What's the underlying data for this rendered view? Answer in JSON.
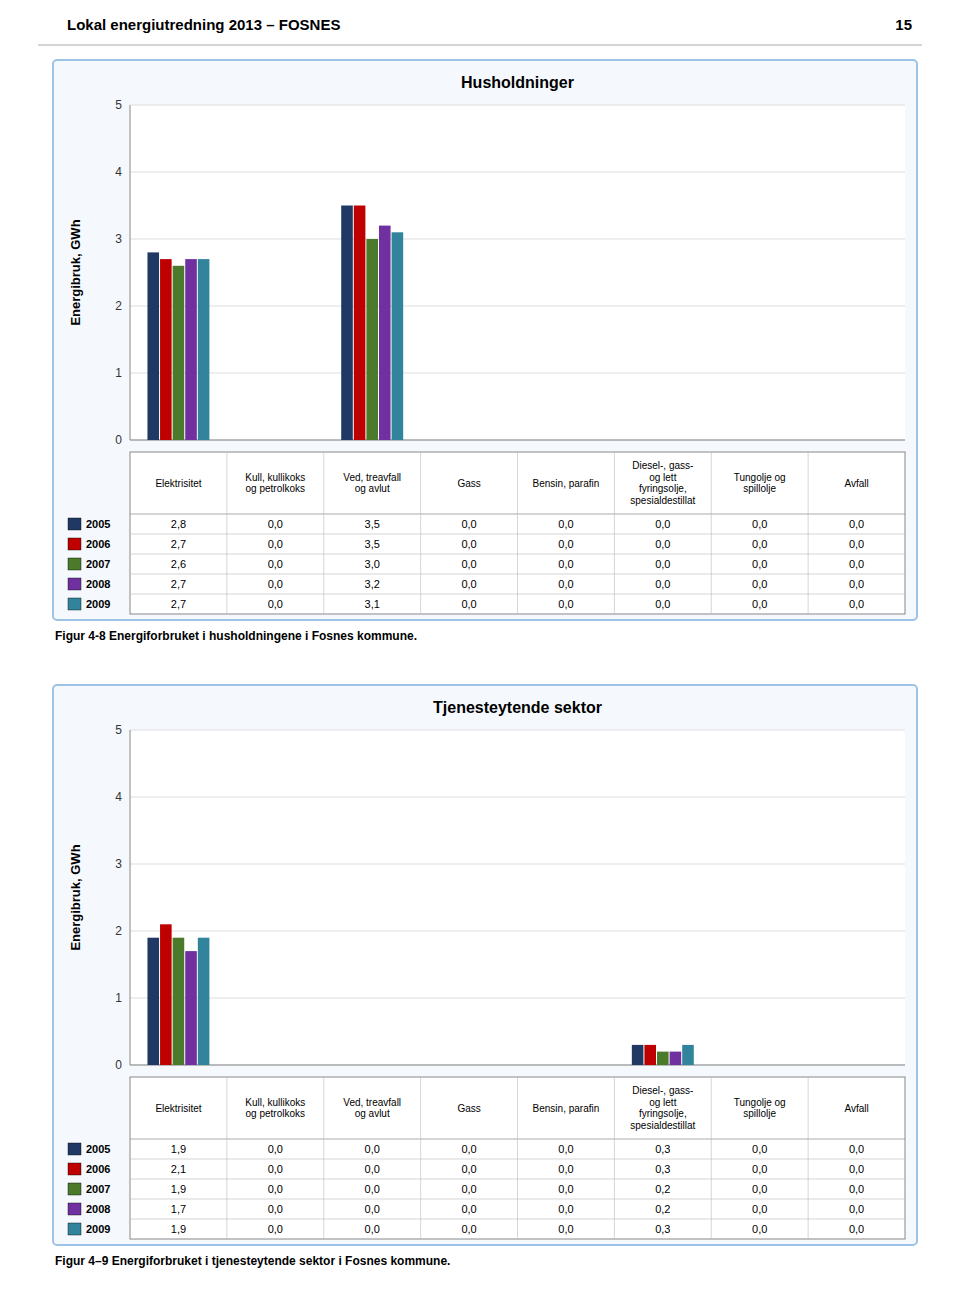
{
  "header": "Lokal energiutredning 2013 – FOSNES",
  "page_number": "15",
  "chart_data": [
    {
      "type": "bar",
      "title": "Husholdninger",
      "ylabel": "Energibruk, GWh",
      "annotations": [
        "Figur 4-8 Energiforbruket i husholdningene i Fosnes kommune."
      ],
      "categories": [
        "Elektrisitet",
        "Kull, kullikoks\nog petrolkoks",
        "Ved, treavfall\nog avlut",
        "Gass",
        "Bensin, parafin",
        "Diesel-, gass-\nog lett\nfyringsolje,\nspesialdestillat",
        "Tungolje og\nspillolje",
        "Avfall"
      ],
      "series": [
        {
          "name": "2005",
          "color": "#1F3864",
          "values": [
            2.8,
            0.0,
            3.5,
            0.0,
            0.0,
            0.0,
            0.0,
            0.0
          ],
          "value_labels": [
            "2,8",
            "0,0",
            "3,5",
            "0,0",
            "0,0",
            "0,0",
            "0,0",
            "0,0"
          ]
        },
        {
          "name": "2006",
          "color": "#BE0000",
          "values": [
            2.7,
            0.0,
            3.5,
            0.0,
            0.0,
            0.0,
            0.0,
            0.0
          ],
          "value_labels": [
            "2,7",
            "0,0",
            "3,5",
            "0,0",
            "0,0",
            "0,0",
            "0,0",
            "0,0"
          ]
        },
        {
          "name": "2007",
          "color": "#4A7A2A",
          "values": [
            2.6,
            0.0,
            3.0,
            0.0,
            0.0,
            0.0,
            0.0,
            0.0
          ],
          "value_labels": [
            "2,6",
            "0,0",
            "3,0",
            "0,0",
            "0,0",
            "0,0",
            "0,0",
            "0,0"
          ]
        },
        {
          "name": "2008",
          "color": "#7030A0",
          "values": [
            2.7,
            0.0,
            3.2,
            0.0,
            0.0,
            0.0,
            0.0,
            0.0
          ],
          "value_labels": [
            "2,7",
            "0,0",
            "3,2",
            "0,0",
            "0,0",
            "0,0",
            "0,0",
            "0,0"
          ]
        },
        {
          "name": "2009",
          "color": "#31849B",
          "values": [
            2.7,
            0.0,
            3.1,
            0.0,
            0.0,
            0.0,
            0.0,
            0.0
          ],
          "value_labels": [
            "2,7",
            "0,0",
            "3,1",
            "0,0",
            "0,0",
            "0,0",
            "0,0",
            "0,0"
          ]
        }
      ],
      "ylim": [
        0,
        5
      ],
      "yticks": [
        0,
        1,
        2,
        3,
        4,
        5
      ],
      "grid": true
    },
    {
      "type": "bar",
      "title": "Tjenesteytende sektor",
      "ylabel": "Energibruk, GWh",
      "annotations": [
        "Figur 4–9 Energiforbruket i tjenesteytende sektor i Fosnes kommune."
      ],
      "categories": [
        "Elektrisitet",
        "Kull, kullikoks\nog petrolkoks",
        "Ved, treavfall\nog avlut",
        "Gass",
        "Bensin, parafin",
        "Diesel-, gass-\nog lett\nfyringsolje,\nspesialdestillat",
        "Tungolje og\nspillolje",
        "Avfall"
      ],
      "series": [
        {
          "name": "2005",
          "color": "#1F3864",
          "values": [
            1.9,
            0.0,
            0.0,
            0.0,
            0.0,
            0.3,
            0.0,
            0.0
          ],
          "value_labels": [
            "1,9",
            "0,0",
            "0,0",
            "0,0",
            "0,0",
            "0,3",
            "0,0",
            "0,0"
          ]
        },
        {
          "name": "2006",
          "color": "#BE0000",
          "values": [
            2.1,
            0.0,
            0.0,
            0.0,
            0.0,
            0.3,
            0.0,
            0.0
          ],
          "value_labels": [
            "2,1",
            "0,0",
            "0,0",
            "0,0",
            "0,0",
            "0,3",
            "0,0",
            "0,0"
          ]
        },
        {
          "name": "2007",
          "color": "#4A7A2A",
          "values": [
            1.9,
            0.0,
            0.0,
            0.0,
            0.0,
            0.2,
            0.0,
            0.0
          ],
          "value_labels": [
            "1,9",
            "0,0",
            "0,0",
            "0,0",
            "0,0",
            "0,2",
            "0,0",
            "0,0"
          ]
        },
        {
          "name": "2008",
          "color": "#7030A0",
          "values": [
            1.7,
            0.0,
            0.0,
            0.0,
            0.0,
            0.2,
            0.0,
            0.0
          ],
          "value_labels": [
            "1,7",
            "0,0",
            "0,0",
            "0,0",
            "0,0",
            "0,2",
            "0,0",
            "0,0"
          ]
        },
        {
          "name": "2009",
          "color": "#31849B",
          "values": [
            1.9,
            0.0,
            0.0,
            0.0,
            0.0,
            0.3,
            0.0,
            0.0
          ],
          "value_labels": [
            "1,9",
            "0,0",
            "0,0",
            "0,0",
            "0,0",
            "0,3",
            "0,0",
            "0,0"
          ]
        }
      ],
      "ylim": [
        0,
        5
      ],
      "yticks": [
        0,
        1,
        2,
        3,
        4,
        5
      ],
      "grid": true
    }
  ]
}
